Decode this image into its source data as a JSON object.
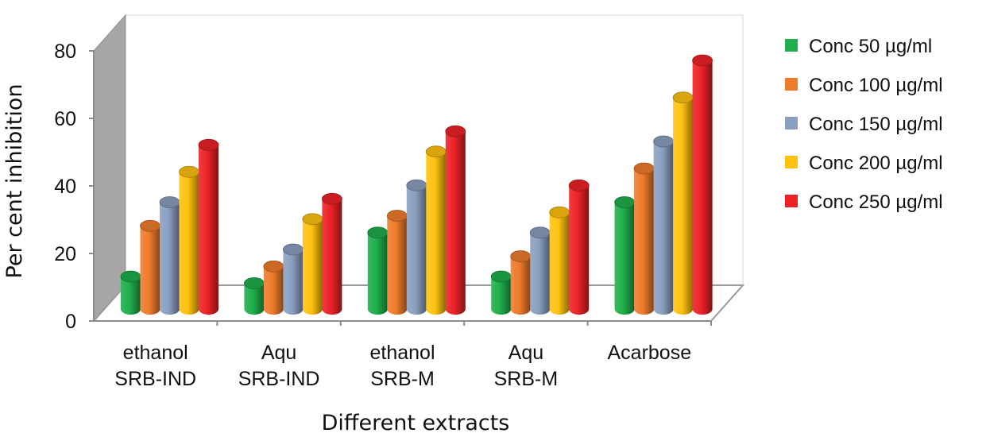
{
  "chart_data": {
    "type": "bar",
    "title": "",
    "xlabel": "Different extracts",
    "ylabel": "Per cent inhibition",
    "ylim": [
      0,
      80
    ],
    "yticks": [
      "0",
      "20",
      "40",
      "60",
      "80"
    ],
    "categories": [
      [
        "ethanol",
        "SRB-IND"
      ],
      [
        "Aqu",
        "SRB-IND"
      ],
      [
        "ethanol",
        "SRB-M"
      ],
      [
        "Aqu",
        "SRB-M"
      ],
      [
        "Acarbose"
      ]
    ],
    "series": [
      {
        "name": "Conc 50 µg/ml",
        "color": "#1fae4b",
        "values": [
          12,
          10,
          25,
          12,
          34
        ]
      },
      {
        "name": "Conc 100 µg/ml",
        "color": "#ef7b2c",
        "values": [
          27,
          15,
          30,
          18,
          44
        ]
      },
      {
        "name": "Conc 150 µg/ml",
        "color": "#8a9fc0",
        "values": [
          34,
          20,
          39,
          25,
          52
        ]
      },
      {
        "name": "Conc 200 µg/ml",
        "color": "#fec20f",
        "values": [
          43,
          29,
          49,
          31,
          65
        ]
      },
      {
        "name": "Conc 250 µg/ml",
        "color": "#ec2227",
        "values": [
          51,
          35,
          55,
          39,
          76
        ]
      }
    ],
    "legend_position": "right",
    "grid": false
  }
}
